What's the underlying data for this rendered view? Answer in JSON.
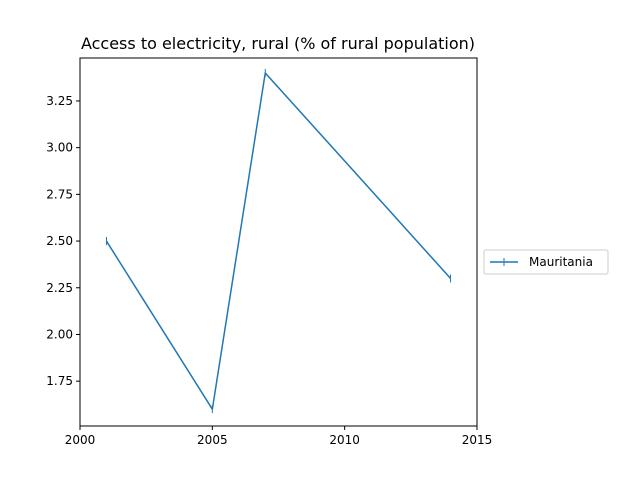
{
  "chart_data": {
    "type": "line",
    "title": "Access to electricity, rural (% of rural population)",
    "xlabel": "",
    "ylabel": "",
    "xlim": [
      2000,
      2015
    ],
    "ylim": [
      1.51,
      3.48
    ],
    "xticks": [
      2000,
      2005,
      2010,
      2015
    ],
    "yticks": [
      1.75,
      2.0,
      2.25,
      2.5,
      2.75,
      3.0,
      3.25
    ],
    "ytick_labels": [
      "1.75",
      "2.00",
      "2.25",
      "2.50",
      "2.75",
      "3.00",
      "3.25"
    ],
    "grid": false,
    "legend_position": "center-right outside",
    "colors": {
      "series": "#1f77b4"
    },
    "series": [
      {
        "name": "Mauritania",
        "x": [
          2001,
          2005,
          2007,
          2014
        ],
        "y": [
          2.5,
          1.6,
          3.4,
          2.3
        ]
      }
    ]
  }
}
